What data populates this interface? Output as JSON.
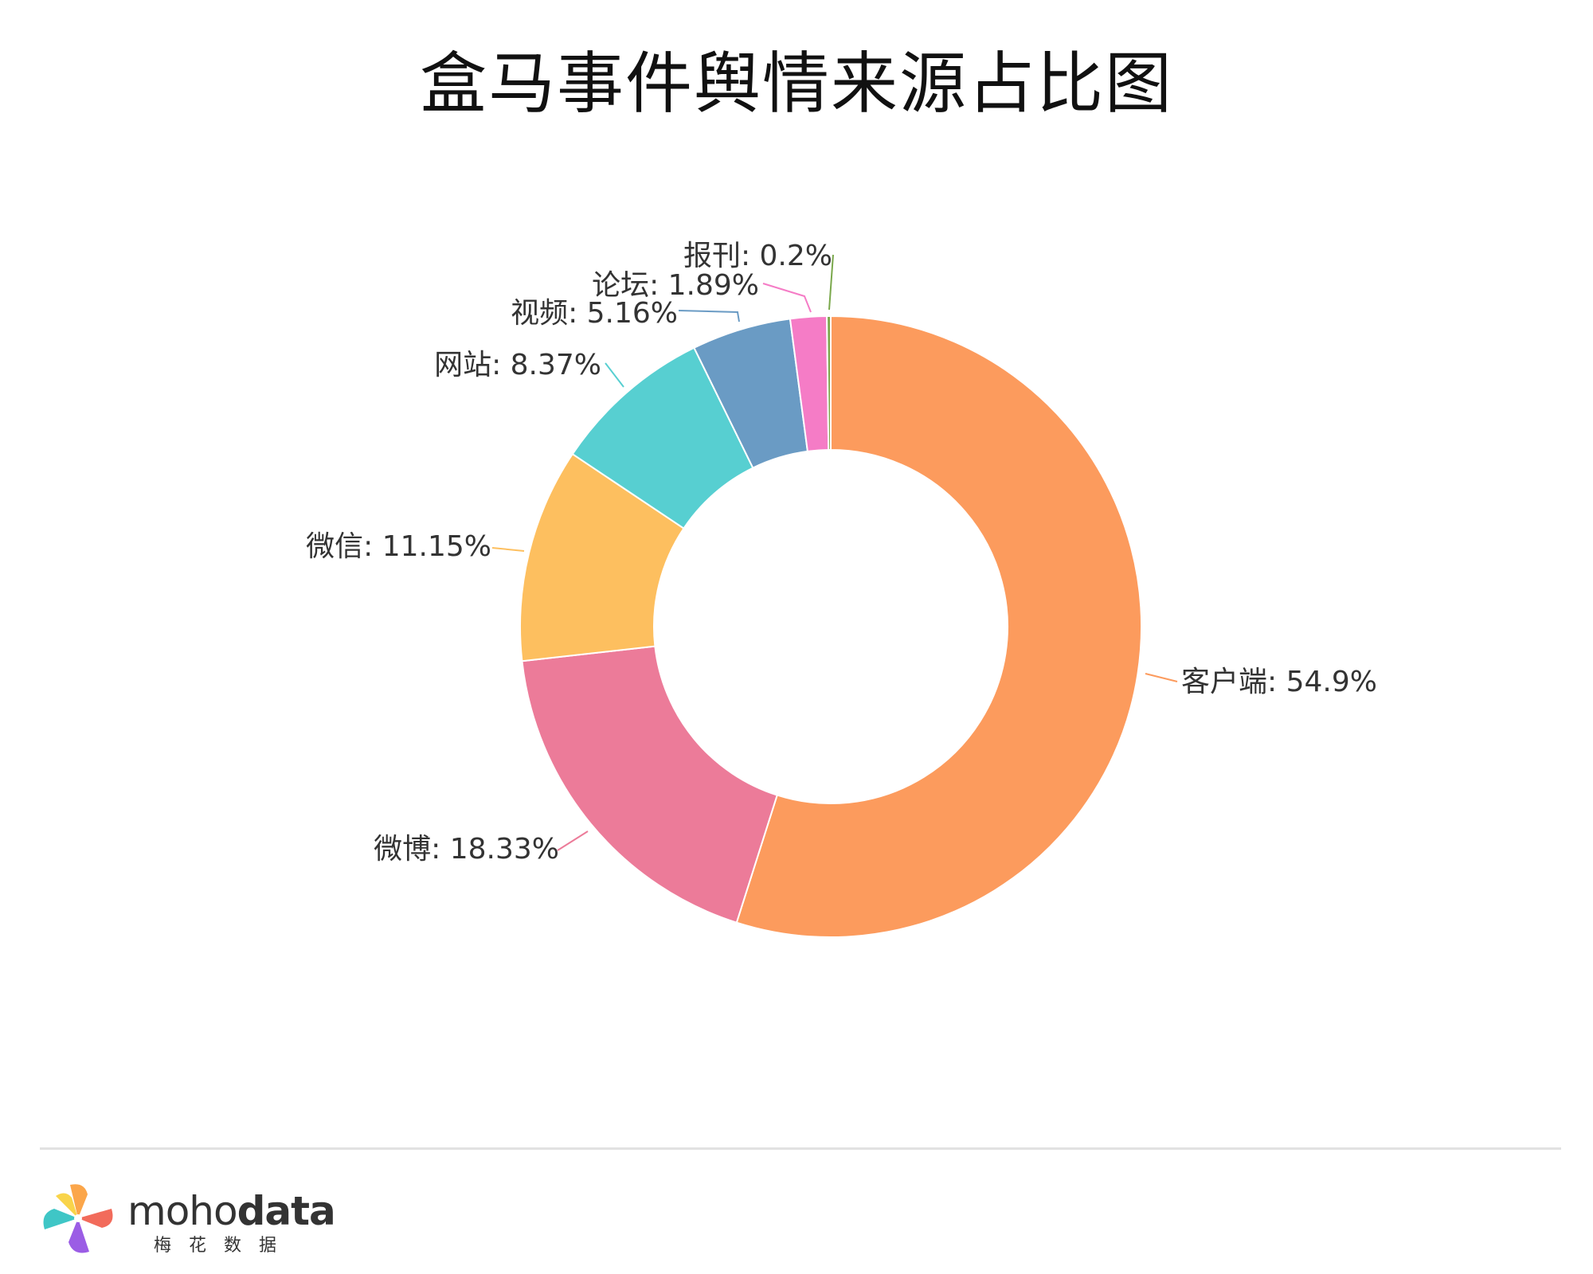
{
  "chart_data": {
    "type": "pie",
    "variant": "donut",
    "title": "盒马事件舆情来源占比图",
    "unit": "%",
    "slices": [
      {
        "label": "客户端",
        "value": 54.9,
        "color": "#FC9B5D"
      },
      {
        "label": "微博",
        "value": 18.33,
        "color": "#EC7B99"
      },
      {
        "label": "微信",
        "value": 11.15,
        "color": "#FDBF5F"
      },
      {
        "label": "网站",
        "value": 8.37,
        "color": "#57CFD1"
      },
      {
        "label": "视频",
        "value": 5.16,
        "color": "#6A9BC4"
      },
      {
        "label": "论坛",
        "value": 1.89,
        "color": "#F57CC6"
      },
      {
        "label": "报刊",
        "value": 0.2,
        "color": "#7AA84C"
      }
    ],
    "label_format": "{label}: {value}%",
    "legend": "none",
    "direction": "clockwise",
    "start": "top"
  },
  "brand": {
    "name_regular": "moho",
    "name_bold": "data",
    "subtitle": "梅花数据",
    "logo_colors": [
      "#F26B5B",
      "#FBA64A",
      "#9B5DE5",
      "#3FC6C6",
      "#F9D44A"
    ]
  }
}
